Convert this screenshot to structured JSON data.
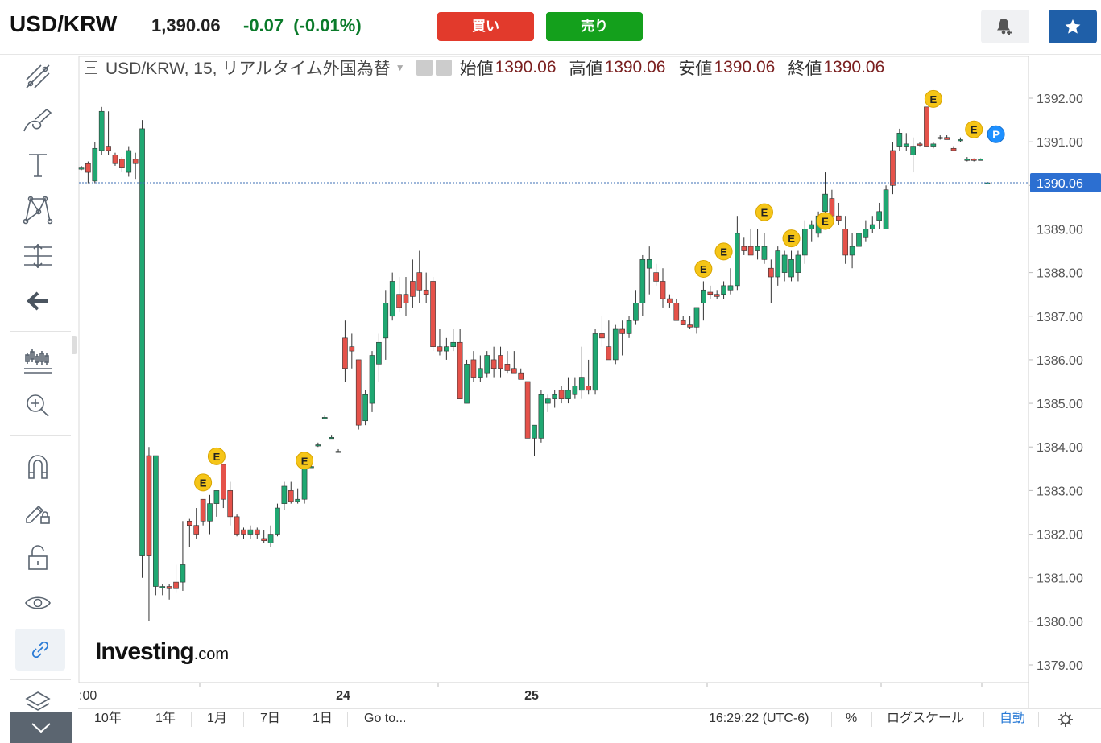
{
  "header": {
    "symbol": "USD/KRW",
    "last_price": "1,390.06",
    "change": "-0.07",
    "change_pct": "(-0.01%)",
    "buy_label": "買い",
    "sell_label": "売り",
    "colors": {
      "buy": "#e23a2c",
      "sell": "#14a01c",
      "change": "#0a7a2a",
      "star_bg": "#1f5fa8"
    }
  },
  "toolbar": {
    "tools": [
      "line-tools-icon",
      "brush-icon",
      "text-icon",
      "pattern-icon",
      "measure-icon",
      "back-arrow-icon",
      "chart-type-icon",
      "zoom-in-icon",
      "magnet-icon",
      "lock-drawing-icon",
      "unlock-icon",
      "eye-icon",
      "link-icon",
      "layers-icon"
    ]
  },
  "legend": {
    "title": "USD/KRW, 15, リアルタイム外国為替",
    "open_label": "始値",
    "open": "1390.06",
    "high_label": "高値",
    "high": "1390.06",
    "low_label": "安値",
    "low": "1390.06",
    "close_label": "終値",
    "close": "1390.06"
  },
  "watermark": {
    "brand": "Investing",
    "domain": ".com"
  },
  "chart_data": {
    "type": "candlestick",
    "symbol": "USD/KRW",
    "interval": "15",
    "y_axis_ticks": [
      1392.0,
      1391.0,
      1390.0,
      1389.0,
      1388.0,
      1387.0,
      1386.0,
      1385.0,
      1384.0,
      1383.0,
      1382.0,
      1381.0,
      1380.0,
      1379.0
    ],
    "y_axis_labels": [
      "1392.00",
      "1391.00",
      "1390.00",
      "1389.00",
      "1388.00",
      "1387.00",
      "1386.00",
      "1385.00",
      "1384.00",
      "1383.00",
      "1382.00",
      "1381.00",
      "1380.00",
      "1379.00"
    ],
    "ylim": [
      1378.6,
      1393.0
    ],
    "last_price_label": "1390.06",
    "last_price": 1390.06,
    "x_axis_labels": [
      ":00",
      "24",
      "25"
    ],
    "up_color": "#1fa872",
    "down_color": "#e5524a",
    "event_marker_label": "E",
    "position_marker_label": "P",
    "candles_ohlc": [
      [
        1390.4,
        1390.45,
        1390.35,
        1390.4
      ],
      [
        1390.5,
        1390.55,
        1390.05,
        1390.3
      ],
      [
        1390.1,
        1391.0,
        1390.05,
        1390.85
      ],
      [
        1390.8,
        1391.8,
        1390.7,
        1391.7
      ],
      [
        1390.9,
        1391.7,
        1390.7,
        1390.8
      ],
      [
        1390.7,
        1390.75,
        1390.45,
        1390.5
      ],
      [
        1390.6,
        1390.65,
        1390.3,
        1390.4
      ],
      [
        1390.3,
        1390.9,
        1390.2,
        1390.8
      ],
      [
        1390.6,
        1390.75,
        1390.15,
        1390.5
      ],
      [
        1381.5,
        1391.5,
        1381.0,
        1391.3
      ],
      [
        1383.8,
        1384.0,
        1380.0,
        1381.5
      ],
      [
        1380.8,
        1383.8,
        1380.6,
        1383.8
      ],
      [
        1380.8,
        1380.85,
        1380.6,
        1380.8
      ],
      [
        1380.8,
        1380.85,
        1380.5,
        1380.75
      ],
      [
        1380.9,
        1381.3,
        1380.65,
        1380.75
      ],
      [
        1380.9,
        1382.3,
        1380.7,
        1381.3
      ],
      [
        1382.3,
        1382.35,
        1381.7,
        1382.2
      ],
      [
        1382.2,
        1382.6,
        1381.9,
        1382.0
      ],
      [
        1382.8,
        1382.8,
        1382.2,
        1382.3
      ],
      [
        1382.3,
        1382.9,
        1382.0,
        1382.7
      ],
      [
        1382.7,
        1383.0,
        1382.4,
        1383.0
      ],
      [
        1383.6,
        1383.6,
        1382.6,
        1382.8
      ],
      [
        1383.0,
        1383.2,
        1382.2,
        1382.4
      ],
      [
        1382.4,
        1382.45,
        1381.95,
        1382.0
      ],
      [
        1382.1,
        1382.15,
        1381.9,
        1382.0
      ],
      [
        1382.0,
        1382.2,
        1381.9,
        1382.1
      ],
      [
        1382.1,
        1382.15,
        1381.9,
        1382.0
      ],
      [
        1381.9,
        1382.1,
        1381.8,
        1381.85
      ],
      [
        1381.8,
        1382.2,
        1381.7,
        1382.0
      ],
      [
        1382.0,
        1382.7,
        1381.95,
        1382.6
      ],
      [
        1382.7,
        1383.2,
        1382.55,
        1383.1
      ],
      [
        1383.0,
        1383.2,
        1382.7,
        1382.75
      ],
      [
        1382.75,
        1383.05,
        1382.7,
        1382.8
      ],
      [
        1382.8,
        1383.6,
        1382.7,
        1383.5
      ],
      [
        1383.55,
        1383.6,
        1383.55,
        1383.55
      ],
      [
        1384.05,
        1384.1,
        1384.0,
        1384.05
      ],
      [
        1384.68,
        1384.72,
        1384.68,
        1384.68
      ],
      [
        1384.22,
        1384.26,
        1384.22,
        1384.22
      ],
      [
        1383.9,
        1383.95,
        1383.9,
        1383.9
      ],
      [
        1386.5,
        1386.9,
        1385.5,
        1385.8
      ],
      [
        1386.3,
        1386.6,
        1385.8,
        1386.2
      ],
      [
        1386.0,
        1386.0,
        1384.4,
        1384.5
      ],
      [
        1384.6,
        1385.3,
        1384.5,
        1385.2
      ],
      [
        1385.0,
        1386.2,
        1384.8,
        1386.1
      ],
      [
        1385.9,
        1386.6,
        1385.5,
        1386.4
      ],
      [
        1386.5,
        1387.6,
        1386.0,
        1387.3
      ],
      [
        1387.0,
        1388.0,
        1386.9,
        1387.8
      ],
      [
        1387.5,
        1387.9,
        1387.1,
        1387.2
      ],
      [
        1387.5,
        1387.9,
        1387.0,
        1387.3
      ],
      [
        1387.8,
        1388.3,
        1387.2,
        1387.45
      ],
      [
        1388.0,
        1388.5,
        1387.3,
        1387.6
      ],
      [
        1387.6,
        1388.0,
        1387.3,
        1387.5
      ],
      [
        1387.8,
        1387.9,
        1386.2,
        1386.3
      ],
      [
        1386.3,
        1386.7,
        1386.1,
        1386.2
      ],
      [
        1386.2,
        1386.5,
        1386.0,
        1386.3
      ],
      [
        1386.3,
        1386.7,
        1386.2,
        1386.4
      ],
      [
        1386.4,
        1386.7,
        1385.1,
        1385.1
      ],
      [
        1385.0,
        1386.0,
        1385.0,
        1385.9
      ],
      [
        1386.0,
        1386.2,
        1385.5,
        1385.6
      ],
      [
        1385.6,
        1386.1,
        1385.5,
        1385.8
      ],
      [
        1385.7,
        1386.2,
        1385.6,
        1386.1
      ],
      [
        1386.0,
        1386.3,
        1385.6,
        1385.8
      ],
      [
        1386.1,
        1386.3,
        1385.6,
        1385.8
      ],
      [
        1385.9,
        1386.2,
        1385.7,
        1385.75
      ],
      [
        1385.8,
        1386.2,
        1385.7,
        1385.7
      ],
      [
        1385.7,
        1385.8,
        1385.6,
        1385.55
      ],
      [
        1385.5,
        1385.5,
        1384.2,
        1384.2
      ],
      [
        1384.2,
        1384.5,
        1383.8,
        1384.5
      ],
      [
        1384.2,
        1385.3,
        1384.1,
        1385.2
      ],
      [
        1385.0,
        1385.2,
        1384.8,
        1385.1
      ],
      [
        1385.1,
        1385.3,
        1384.9,
        1385.2
      ],
      [
        1385.3,
        1385.4,
        1385.0,
        1385.1
      ],
      [
        1385.1,
        1385.6,
        1385.0,
        1385.3
      ],
      [
        1385.2,
        1385.6,
        1385.1,
        1385.4
      ],
      [
        1385.3,
        1386.3,
        1385.1,
        1385.6
      ],
      [
        1385.4,
        1386.0,
        1385.2,
        1385.3
      ],
      [
        1385.3,
        1386.7,
        1385.2,
        1386.6
      ],
      [
        1386.6,
        1387.0,
        1386.3,
        1386.5
      ],
      [
        1386.3,
        1386.9,
        1386.2,
        1386.0
      ],
      [
        1386.0,
        1386.8,
        1385.9,
        1386.7
      ],
      [
        1386.7,
        1386.9,
        1386.1,
        1386.6
      ],
      [
        1386.6,
        1387.0,
        1386.5,
        1386.9
      ],
      [
        1386.9,
        1387.6,
        1386.8,
        1387.3
      ],
      [
        1387.3,
        1388.4,
        1387.0,
        1388.3
      ],
      [
        1388.1,
        1388.6,
        1387.5,
        1388.3
      ],
      [
        1388.0,
        1388.2,
        1387.7,
        1387.8
      ],
      [
        1387.8,
        1388.1,
        1387.2,
        1387.4
      ],
      [
        1387.4,
        1387.5,
        1387.2,
        1387.3
      ],
      [
        1387.3,
        1387.4,
        1386.9,
        1386.9
      ],
      [
        1386.9,
        1387.0,
        1386.8,
        1386.8
      ],
      [
        1386.8,
        1387.0,
        1386.7,
        1386.75
      ],
      [
        1386.75,
        1387.0,
        1386.6,
        1387.2
      ],
      [
        1387.3,
        1387.8,
        1386.9,
        1387.6
      ],
      [
        1387.55,
        1387.7,
        1387.4,
        1387.5
      ],
      [
        1387.5,
        1387.6,
        1387.4,
        1387.45
      ],
      [
        1387.5,
        1387.8,
        1387.4,
        1387.7
      ],
      [
        1387.6,
        1388.1,
        1387.5,
        1387.7
      ],
      [
        1387.7,
        1389.3,
        1387.6,
        1388.9
      ],
      [
        1388.6,
        1388.8,
        1388.4,
        1388.5
      ],
      [
        1388.6,
        1389.0,
        1388.4,
        1388.4
      ],
      [
        1388.5,
        1389.0,
        1388.3,
        1388.6
      ],
      [
        1388.3,
        1388.9,
        1388.2,
        1388.6
      ],
      [
        1388.1,
        1388.3,
        1387.3,
        1387.9
      ],
      [
        1387.9,
        1388.6,
        1387.7,
        1388.5
      ],
      [
        1388.0,
        1388.5,
        1387.8,
        1388.4
      ],
      [
        1387.9,
        1388.5,
        1387.8,
        1388.3
      ],
      [
        1388.0,
        1388.5,
        1387.8,
        1388.4
      ],
      [
        1388.4,
        1389.2,
        1388.2,
        1389.0
      ],
      [
        1389.0,
        1389.2,
        1388.7,
        1389.1
      ],
      [
        1388.9,
        1389.4,
        1388.8,
        1389.3
      ],
      [
        1389.4,
        1390.3,
        1389.2,
        1389.8
      ],
      [
        1389.7,
        1389.9,
        1389.2,
        1389.3
      ],
      [
        1389.3,
        1389.6,
        1389.1,
        1389.2
      ],
      [
        1389.0,
        1389.3,
        1388.2,
        1388.4
      ],
      [
        1388.4,
        1388.9,
        1388.1,
        1388.6
      ],
      [
        1388.6,
        1389.1,
        1388.5,
        1388.9
      ],
      [
        1388.8,
        1389.2,
        1388.7,
        1389.0
      ],
      [
        1389.0,
        1389.3,
        1388.9,
        1389.1
      ],
      [
        1389.2,
        1389.6,
        1389.0,
        1389.4
      ],
      [
        1389.0,
        1390.0,
        1389.0,
        1389.9
      ],
      [
        1390.8,
        1391.0,
        1389.8,
        1390.0
      ],
      [
        1390.9,
        1391.3,
        1390.8,
        1391.2
      ],
      [
        1390.9,
        1391.2,
        1390.8,
        1390.95
      ],
      [
        1390.7,
        1391.1,
        1390.3,
        1390.9
      ],
      [
        1390.95,
        1391.0,
        1390.9,
        1390.92
      ],
      [
        1391.8,
        1391.8,
        1390.9,
        1390.9
      ],
      [
        1390.9,
        1391.0,
        1390.85,
        1390.95
      ],
      [
        1391.1,
        1391.15,
        1391.05,
        1391.1
      ],
      [
        1391.1,
        1391.15,
        1391.05,
        1391.05
      ],
      [
        1390.85,
        1390.9,
        1390.8,
        1390.8
      ],
      [
        1391.05,
        1391.1,
        1391.0,
        1391.05
      ],
      [
        1390.6,
        1390.65,
        1390.55,
        1390.6
      ],
      [
        1390.6,
        1390.62,
        1390.55,
        1390.58
      ],
      [
        1390.6,
        1390.62,
        1390.58,
        1390.6
      ],
      [
        1390.06,
        1390.08,
        1390.04,
        1390.06
      ]
    ]
  },
  "bottom_bar": {
    "ranges": [
      "10年",
      "1年",
      "1月",
      "7日",
      "1日"
    ],
    "goto_label": "Go to...",
    "time": "16:29:22 (UTC-6)",
    "percent_label": "%",
    "log_label": "ログスケール",
    "auto_label": "自動"
  }
}
